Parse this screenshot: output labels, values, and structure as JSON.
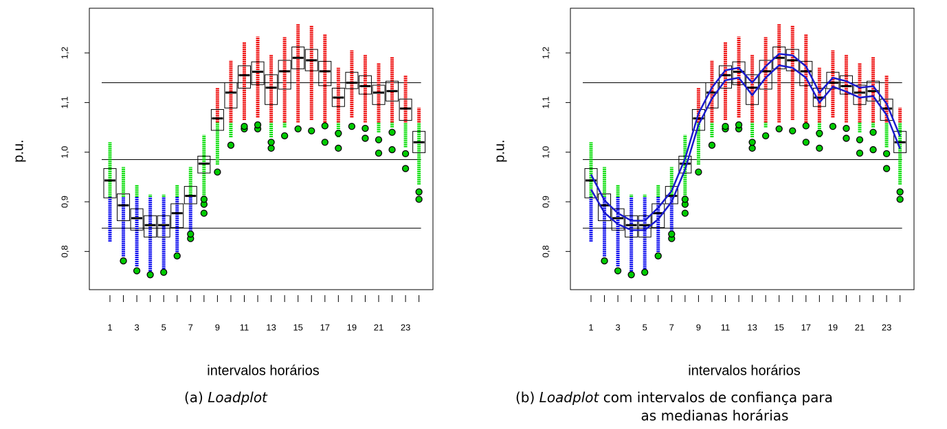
{
  "chart_data": [
    {
      "type": "box",
      "x_label": "intervalos horários",
      "y_label": "p.u.",
      "caption": {
        "label": "(a)",
        "emph": "Loadplot"
      },
      "categories": [
        1,
        null,
        3,
        null,
        5,
        null,
        7,
        null,
        9,
        null,
        11,
        null,
        13,
        null,
        15,
        null,
        17,
        null,
        19,
        null,
        21,
        null,
        23,
        null
      ],
      "median": [
        0.943,
        0.893,
        0.867,
        0.853,
        0.853,
        0.877,
        0.912,
        0.977,
        1.068,
        1.12,
        1.155,
        1.162,
        1.13,
        1.163,
        1.19,
        1.185,
        1.163,
        1.11,
        1.14,
        1.133,
        1.12,
        1.123,
        1.088,
        1.02
      ],
      "q1": [
        0.908,
        0.862,
        0.843,
        0.829,
        0.829,
        0.848,
        0.896,
        0.958,
        1.044,
        1.089,
        1.129,
        1.136,
        1.096,
        1.127,
        1.168,
        1.164,
        1.134,
        1.092,
        1.128,
        1.117,
        1.096,
        1.103,
        1.064,
        0.999
      ],
      "q3": [
        0.967,
        0.916,
        0.886,
        0.872,
        0.872,
        0.896,
        0.931,
        0.992,
        1.086,
        1.14,
        1.174,
        1.182,
        1.156,
        1.185,
        1.212,
        1.207,
        1.183,
        1.129,
        1.161,
        1.154,
        1.135,
        1.143,
        1.107,
        1.042
      ],
      "low": [
        0.82,
        0.79,
        0.77,
        0.76,
        0.765,
        0.795,
        0.84,
        0.9,
        0.975,
        1.03,
        1.065,
        1.07,
        1.03,
        1.05,
        1.06,
        1.065,
        1.06,
        1.03,
        1.07,
        1.06,
        1.04,
        1.05,
        1.01,
        0.935
      ],
      "high": [
        1.02,
        0.97,
        0.935,
        0.915,
        0.915,
        0.935,
        0.97,
        1.035,
        1.13,
        1.185,
        1.222,
        1.233,
        1.197,
        1.232,
        1.258,
        1.255,
        1.237,
        1.17,
        1.205,
        1.197,
        1.18,
        1.192,
        1.155,
        1.09
      ],
      "outliers": [
        [],
        [
          0.781
        ],
        [
          0.761
        ],
        [
          0.753
        ],
        [
          0.758
        ],
        [
          0.791
        ],
        [
          0.826,
          0.835
        ],
        [
          0.877,
          0.895,
          0.905
        ],
        [
          0.96
        ],
        [
          1.014
        ],
        [
          1.047,
          1.052
        ],
        [
          1.047,
          1.055
        ],
        [
          1.008,
          1.02
        ],
        [
          1.033
        ],
        [
          1.047
        ],
        [
          1.043
        ],
        [
          1.053,
          1.02
        ],
        [
          1.038,
          1.008
        ],
        [
          1.052
        ],
        [
          1.048,
          1.028
        ],
        [
          1.025,
          0.998
        ],
        [
          1.04,
          1.005
        ],
        [
          0.997,
          0.967
        ],
        [
          0.92,
          0.905
        ]
      ],
      "ylim": [
        0.723,
        1.29
      ],
      "yticks": [
        {
          "value": 0.8,
          "label": "0,8"
        },
        {
          "value": 0.9,
          "label": "0,9"
        },
        {
          "value": 1.0,
          "label": "1,0"
        },
        {
          "value": 1.1,
          "label": "1,1"
        },
        {
          "value": 1.2,
          "label": "1,2"
        }
      ],
      "hlines": [
        0.847,
        0.985,
        1.14
      ],
      "color_breaks": [
        0.91,
        1.06
      ],
      "band_colors": [
        "#0000ee",
        "#00dd00",
        "#ee0000"
      ],
      "outlier_fill": "#00cc00"
    },
    {
      "type": "box",
      "x_label": "intervalos horários",
      "y_label": "p.u.",
      "caption": {
        "label": "(b)",
        "emph": "Loadplot",
        "text": "com intervalos de confiança para",
        "text2": "as medianas horárias"
      },
      "categories": [
        1,
        null,
        3,
        null,
        5,
        null,
        7,
        null,
        9,
        null,
        11,
        null,
        13,
        null,
        15,
        null,
        17,
        null,
        19,
        null,
        21,
        null,
        23,
        null
      ],
      "median": [
        0.943,
        0.893,
        0.867,
        0.853,
        0.853,
        0.877,
        0.912,
        0.977,
        1.068,
        1.12,
        1.155,
        1.162,
        1.13,
        1.163,
        1.19,
        1.185,
        1.163,
        1.11,
        1.14,
        1.133,
        1.12,
        1.123,
        1.088,
        1.02
      ],
      "q1": [
        0.908,
        0.862,
        0.843,
        0.829,
        0.829,
        0.848,
        0.896,
        0.958,
        1.044,
        1.089,
        1.129,
        1.136,
        1.096,
        1.127,
        1.168,
        1.164,
        1.134,
        1.092,
        1.128,
        1.117,
        1.096,
        1.103,
        1.064,
        0.999
      ],
      "q3": [
        0.967,
        0.916,
        0.886,
        0.872,
        0.872,
        0.896,
        0.931,
        0.992,
        1.086,
        1.14,
        1.174,
        1.182,
        1.156,
        1.185,
        1.212,
        1.207,
        1.183,
        1.129,
        1.161,
        1.154,
        1.135,
        1.143,
        1.107,
        1.042
      ],
      "low": [
        0.82,
        0.79,
        0.77,
        0.76,
        0.765,
        0.795,
        0.84,
        0.9,
        0.975,
        1.03,
        1.065,
        1.07,
        1.03,
        1.05,
        1.06,
        1.065,
        1.06,
        1.03,
        1.07,
        1.06,
        1.04,
        1.05,
        1.01,
        0.935
      ],
      "high": [
        1.02,
        0.97,
        0.935,
        0.915,
        0.915,
        0.935,
        0.97,
        1.035,
        1.13,
        1.185,
        1.222,
        1.233,
        1.197,
        1.232,
        1.258,
        1.255,
        1.237,
        1.17,
        1.205,
        1.197,
        1.18,
        1.192,
        1.155,
        1.09
      ],
      "outliers": [
        [],
        [
          0.781
        ],
        [
          0.761
        ],
        [
          0.753
        ],
        [
          0.758
        ],
        [
          0.791
        ],
        [
          0.826,
          0.835
        ],
        [
          0.877,
          0.895,
          0.905
        ],
        [
          0.96
        ],
        [
          1.014
        ],
        [
          1.047,
          1.052
        ],
        [
          1.047,
          1.055
        ],
        [
          1.008,
          1.02
        ],
        [
          1.033
        ],
        [
          1.047
        ],
        [
          1.043
        ],
        [
          1.053,
          1.02
        ],
        [
          1.038,
          1.008
        ],
        [
          1.052
        ],
        [
          1.048,
          1.028
        ],
        [
          1.025,
          0.998
        ],
        [
          1.04,
          1.005
        ],
        [
          0.997,
          0.967
        ],
        [
          0.92,
          0.905
        ]
      ],
      "ci_lower": [
        0.925,
        0.878,
        0.855,
        0.843,
        0.843,
        0.865,
        0.9,
        0.965,
        1.055,
        1.108,
        1.145,
        1.15,
        1.115,
        1.15,
        1.175,
        1.17,
        1.15,
        1.1,
        1.132,
        1.122,
        1.11,
        1.113,
        1.075,
        1.007
      ],
      "ci_upper": [
        0.955,
        0.903,
        0.877,
        0.862,
        0.862,
        0.888,
        0.922,
        0.987,
        1.078,
        1.13,
        1.165,
        1.17,
        1.14,
        1.173,
        1.198,
        1.195,
        1.173,
        1.12,
        1.15,
        1.143,
        1.13,
        1.133,
        1.098,
        1.032
      ],
      "ci_color": "#1a1acc",
      "ylim": [
        0.723,
        1.29
      ],
      "yticks": [
        {
          "value": 0.8,
          "label": "0,8"
        },
        {
          "value": 0.9,
          "label": "0,9"
        },
        {
          "value": 1.0,
          "label": "1,0"
        },
        {
          "value": 1.1,
          "label": "1,1"
        },
        {
          "value": 1.2,
          "label": "1,2"
        }
      ],
      "hlines": [
        0.847,
        0.985,
        1.14
      ],
      "color_breaks": [
        0.91,
        1.06
      ],
      "band_colors": [
        "#0000ee",
        "#00dd00",
        "#ee0000"
      ],
      "outlier_fill": "#00cc00"
    }
  ]
}
